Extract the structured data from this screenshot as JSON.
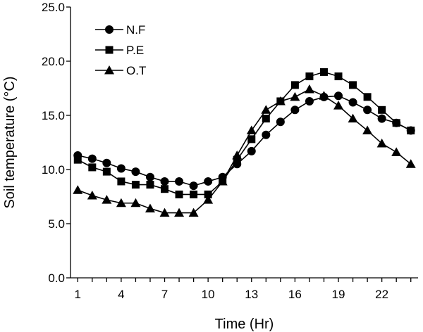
{
  "chart_data": {
    "type": "line",
    "title": "",
    "xlabel": "Time (Hr)",
    "ylabel": "Soil temperature (°C)",
    "xlim": [
      0.5,
      24.5
    ],
    "ylim": [
      0,
      25
    ],
    "x_ticks": [
      1,
      4,
      7,
      10,
      13,
      16,
      19,
      22
    ],
    "x_tick_labels": [
      "1",
      "4",
      "7",
      "10",
      "13",
      "16",
      "19",
      "22"
    ],
    "y_ticks": [
      0,
      5,
      10,
      15,
      20,
      25
    ],
    "y_tick_labels": [
      "0.0",
      "5.0",
      "10.0",
      "15.0",
      "20.0",
      "25.0"
    ],
    "legend_position": "top-left",
    "x": [
      1,
      2,
      3,
      4,
      5,
      6,
      7,
      8,
      9,
      10,
      11,
      12,
      13,
      14,
      15,
      16,
      17,
      18,
      19,
      20,
      21,
      22,
      23,
      24
    ],
    "series": [
      {
        "name": "N.F",
        "marker": "circle",
        "values": [
          11.3,
          11.0,
          10.6,
          10.1,
          9.8,
          9.3,
          8.9,
          8.9,
          8.5,
          8.9,
          9.3,
          10.5,
          11.7,
          13.2,
          14.4,
          15.5,
          16.3,
          16.7,
          16.8,
          16.2,
          15.5,
          14.7,
          14.3,
          13.6
        ]
      },
      {
        "name": "P.E",
        "marker": "square",
        "values": [
          10.9,
          10.2,
          9.8,
          8.9,
          8.6,
          8.6,
          8.2,
          7.7,
          7.7,
          7.7,
          8.9,
          10.9,
          12.8,
          14.7,
          16.3,
          17.8,
          18.6,
          19.0,
          18.6,
          17.8,
          16.7,
          15.5,
          14.3,
          13.6
        ]
      },
      {
        "name": "O.T",
        "marker": "triangle",
        "values": [
          8.1,
          7.6,
          7.2,
          6.9,
          6.9,
          6.4,
          6.0,
          6.0,
          6.0,
          7.2,
          8.9,
          11.3,
          13.6,
          15.5,
          16.3,
          16.7,
          17.4,
          16.8,
          15.9,
          14.7,
          13.6,
          12.4,
          11.6,
          10.5
        ]
      }
    ]
  }
}
